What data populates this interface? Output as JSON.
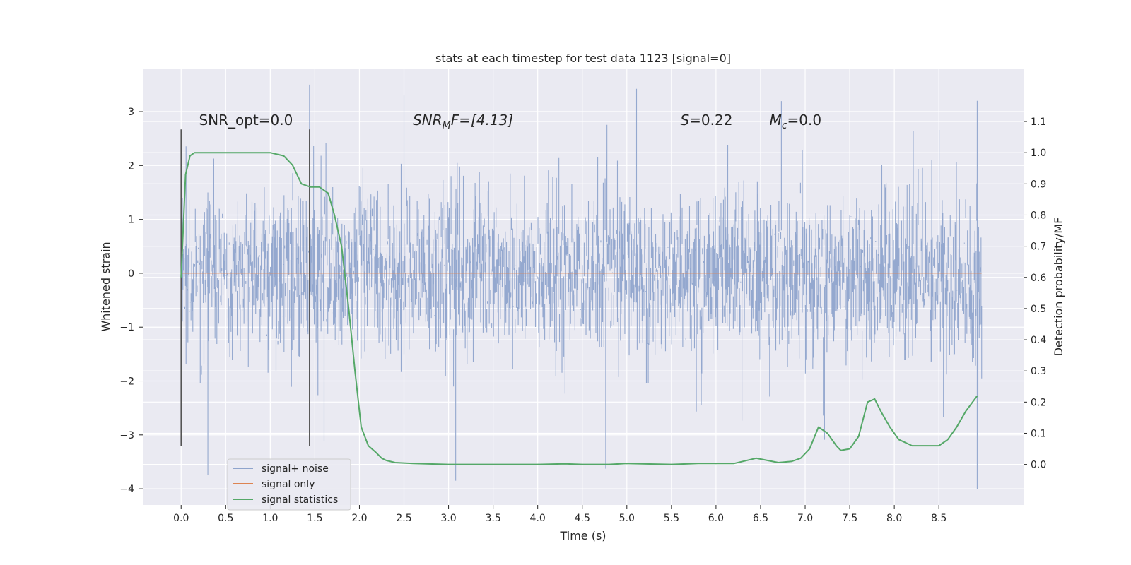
{
  "chart_data": {
    "type": "line",
    "title": "stats at each timestep for test data 1123 [signal=0]",
    "xlabel": "Time (s)",
    "ylabel": "Whitened strain",
    "y2label": "Detection probability/MF",
    "xlim": [
      -0.43,
      9.45
    ],
    "ylim": [
      -4.3,
      3.8
    ],
    "y2lim": [
      -0.13,
      1.27
    ],
    "x_ticks": [
      "0.0",
      "0.5",
      "1.0",
      "1.5",
      "2.0",
      "2.5",
      "3.0",
      "3.5",
      "4.0",
      "4.5",
      "5.0",
      "5.5",
      "6.0",
      "6.5",
      "7.0",
      "7.5",
      "8.0",
      "8.5"
    ],
    "x_tick_values": [
      0.0,
      0.5,
      1.0,
      1.5,
      2.0,
      2.5,
      3.0,
      3.5,
      4.0,
      4.5,
      5.0,
      5.5,
      6.0,
      6.5,
      7.0,
      7.5,
      8.0,
      8.5
    ],
    "y_ticks": [
      "3",
      "2",
      "1",
      "0",
      "−1",
      "−2",
      "−3",
      "−4"
    ],
    "y_tick_values": [
      3,
      2,
      1,
      0,
      -1,
      -2,
      -3,
      -4
    ],
    "y2_ticks": [
      "1.1",
      "1.0",
      "0.9",
      "0.8",
      "0.7",
      "0.6",
      "0.5",
      "0.4",
      "0.3",
      "0.2",
      "0.1",
      "0.0"
    ],
    "y2_tick_values": [
      1.1,
      1.0,
      0.9,
      0.8,
      0.7,
      0.6,
      0.5,
      0.4,
      0.3,
      0.2,
      0.1,
      0.0
    ],
    "grid": true,
    "legend_position": "lower-left",
    "annotations": [
      "SNR_opt=0.0",
      "SNR",
      "M",
      "F=[4.13]",
      "S",
      "=0.22",
      "M",
      "c",
      "=0.0"
    ],
    "annotation_positions": [
      [
        0.2,
        2.75
      ],
      [
        2.6,
        2.75
      ],
      [
        5.6,
        2.75
      ],
      [
        6.6,
        2.75
      ]
    ],
    "vlines": [
      0.0,
      1.44
    ],
    "vline_range": [
      -3.2,
      2.67
    ],
    "series": [
      {
        "name": "signal+ noise",
        "color": "#8fa4cc",
        "x_range": [
          0.0,
          8.98
        ],
        "y_min": -4.0,
        "y_max": 3.5,
        "envelope": "dense noise between about -1.5 and 1.5, spikes up to 3.5 and down to -4.0"
      },
      {
        "name": "signal only",
        "color": "#dd8452",
        "x": [
          0.0,
          8.98
        ],
        "y": [
          0.0,
          0.0
        ]
      },
      {
        "name": "signal statistics",
        "color": "#55a868",
        "axis": "right",
        "x": [
          0.0,
          0.05,
          0.1,
          0.15,
          0.2,
          0.3,
          0.5,
          1.0,
          1.15,
          1.25,
          1.35,
          1.45,
          1.55,
          1.65,
          1.72,
          1.8,
          1.88,
          1.95,
          2.02,
          2.1,
          2.18,
          2.25,
          2.3,
          2.4,
          2.6,
          3.0,
          3.5,
          4.0,
          4.3,
          4.5,
          4.8,
          5.0,
          5.5,
          5.8,
          6.2,
          6.45,
          6.7,
          6.85,
          6.95,
          7.05,
          7.15,
          7.25,
          7.35,
          7.4,
          7.5,
          7.6,
          7.7,
          7.78,
          7.85,
          7.95,
          8.05,
          8.2,
          8.5,
          8.6,
          8.7,
          8.8,
          8.93
        ],
        "y": [
          0.6,
          0.93,
          0.99,
          1.0,
          1.0,
          1.0,
          1.0,
          1.0,
          0.99,
          0.96,
          0.9,
          0.89,
          0.89,
          0.87,
          0.8,
          0.7,
          0.5,
          0.3,
          0.12,
          0.06,
          0.04,
          0.02,
          0.013,
          0.006,
          0.003,
          0.0,
          0.0,
          0.0,
          0.002,
          0.0,
          0.0,
          0.003,
          0.0,
          0.003,
          0.003,
          0.02,
          0.006,
          0.01,
          0.02,
          0.05,
          0.12,
          0.1,
          0.06,
          0.045,
          0.05,
          0.09,
          0.2,
          0.21,
          0.17,
          0.12,
          0.08,
          0.06,
          0.06,
          0.08,
          0.12,
          0.17,
          0.22
        ]
      }
    ]
  }
}
